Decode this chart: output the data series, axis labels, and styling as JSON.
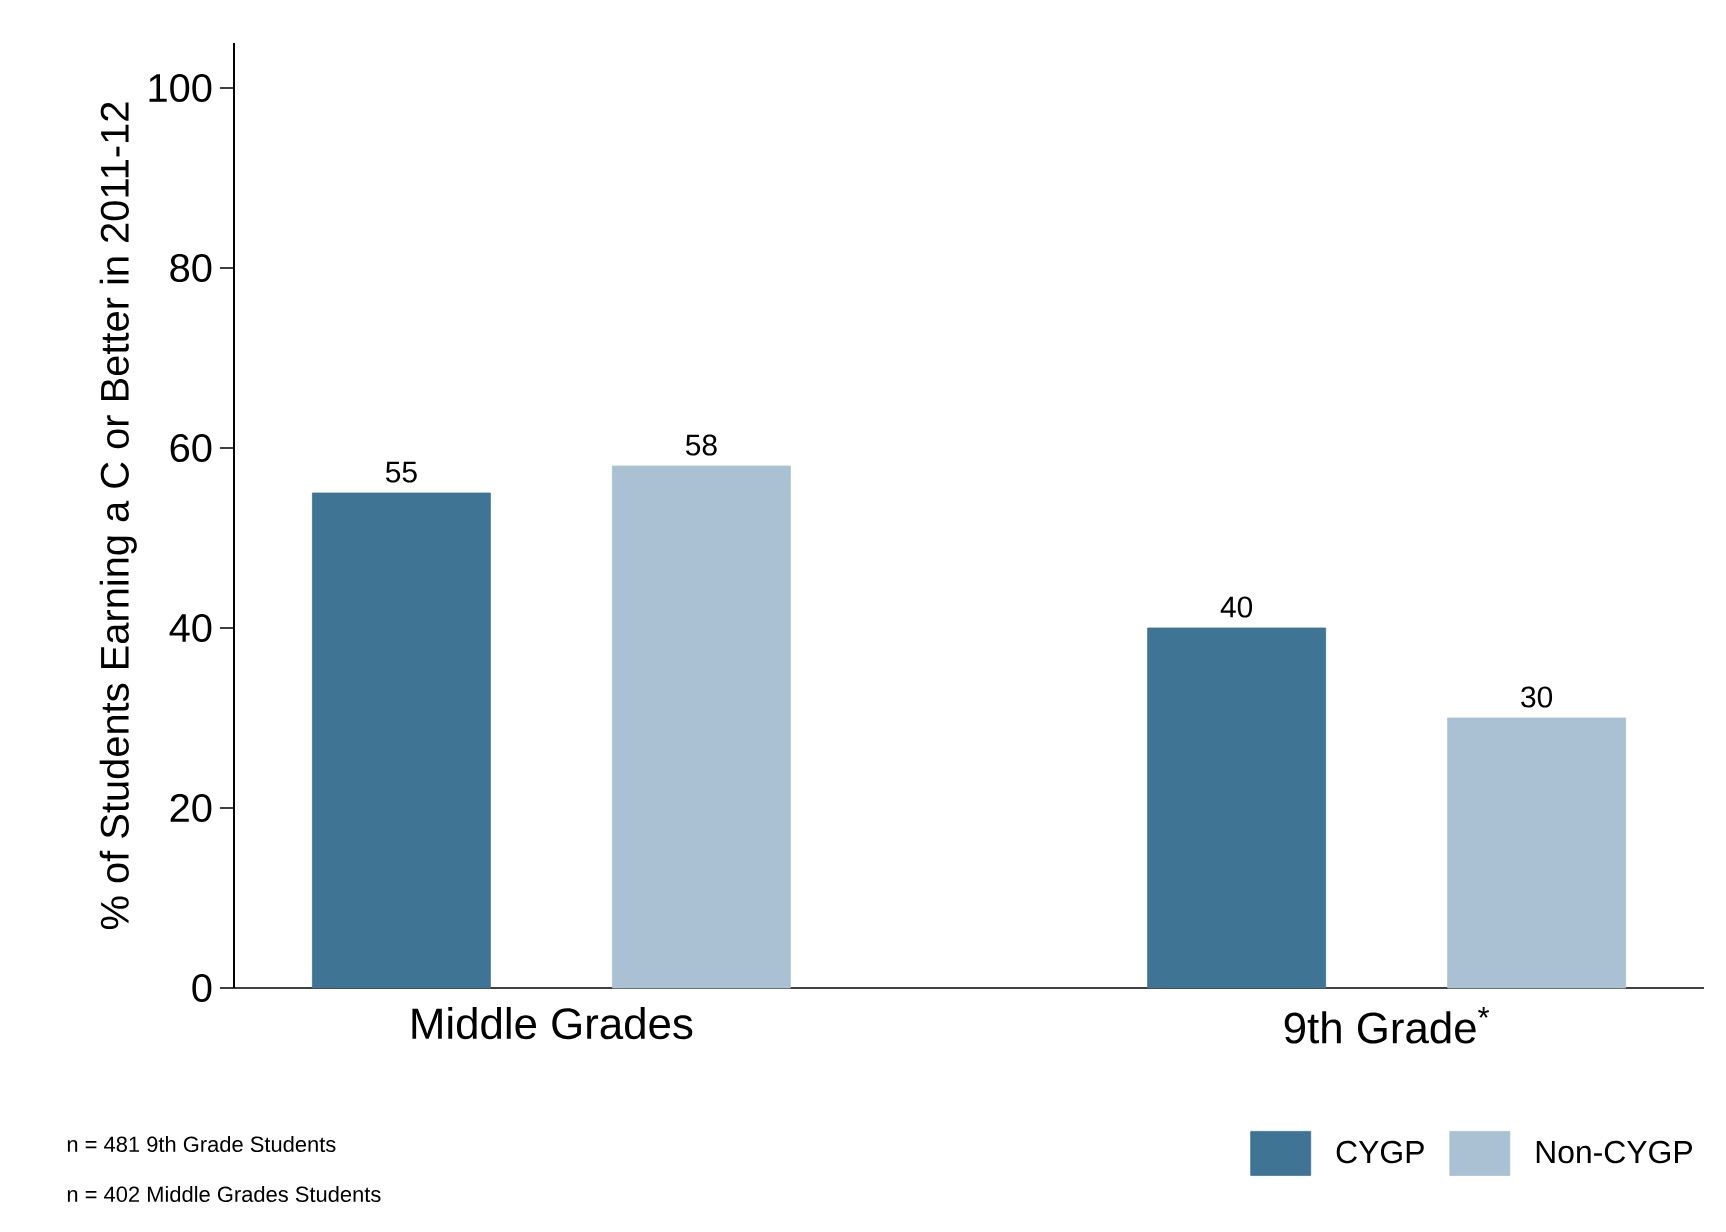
{
  "chart_data": {
    "type": "bar",
    "ylabel": "% of Students Earning a C or Better in 2011-12",
    "categories": [
      "Middle Grades",
      "9th Grade$^{*}$"
    ],
    "series": [
      {
        "name": "CYGP",
        "color": "#3f7494",
        "values": [
          55,
          40
        ]
      },
      {
        "name": "Non-CYGP",
        "color": "#a9c1d2",
        "values": [
          58,
          30
        ]
      }
    ],
    "ylim": [
      0,
      105
    ],
    "yticks": [
      0,
      20,
      40,
      60,
      80,
      100
    ],
    "data_labels": true,
    "legend": "bottom right",
    "grid": false,
    "annotations": [
      "n = 481 9th Grade Students",
      "n = 402 Middle Grades Students"
    ]
  }
}
